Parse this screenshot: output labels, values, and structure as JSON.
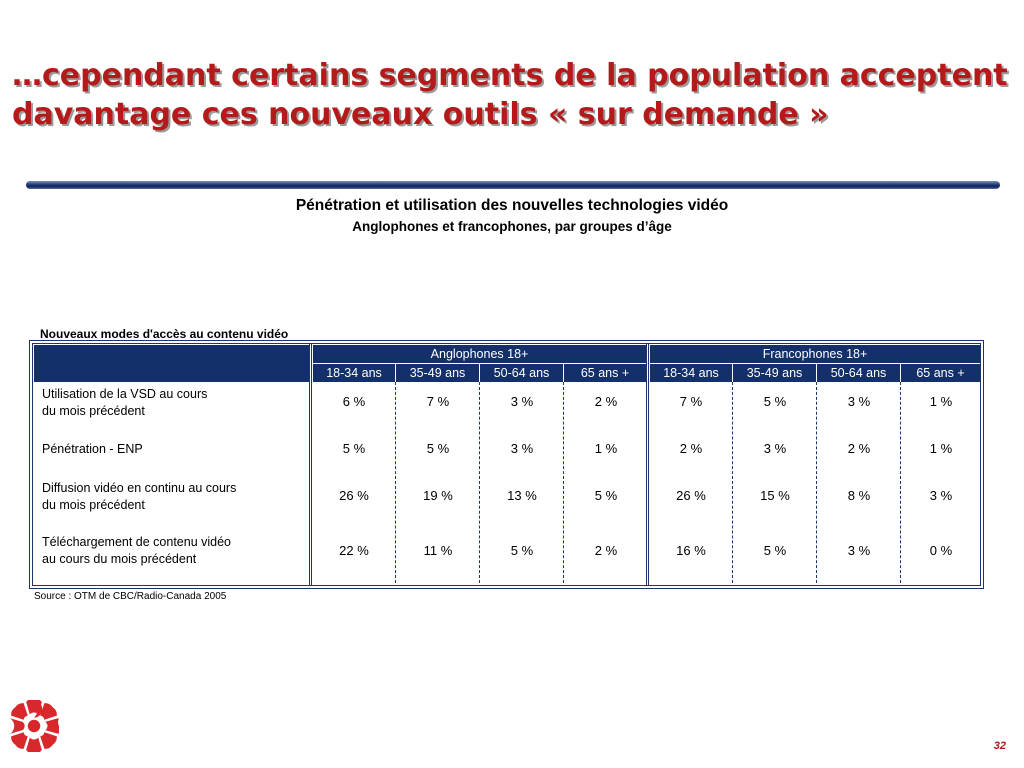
{
  "slide": {
    "title": "…cependant certains segments de la population acceptent davantage ces nouveaux outils « sur demande »",
    "chart_title": "Pénétration et utilisation des nouvelles technologies vidéo",
    "chart_subtitle": "Anglophones et francophones, par groupes d’âge",
    "table_caption": "Nouveaux modes d'accès au contenu vidéo",
    "source": "Source : OTM de CBC/Radio-Canada 2005",
    "page_number": "32",
    "colors": {
      "title": "#b51a1a",
      "header_bg": "#13306b",
      "rule": "#1b356d"
    },
    "logo_icon": "cbc-radio-canada-gem-logo"
  },
  "table": {
    "groups": [
      "Anglophones 18+",
      "Francophones 18+"
    ],
    "ages": [
      "18-34 ans",
      "35-49 ans",
      "50-64 ans",
      "65 ans +",
      "18-34 ans",
      "35-49 ans",
      "50-64 ans",
      "65 ans +"
    ],
    "rows": [
      {
        "label_lines": [
          "Utilisation de la VSD au cours",
          "du mois précédent"
        ],
        "values": [
          "6 %",
          "7 %",
          "3 %",
          "2 %",
          "7 %",
          "5 %",
          "3 %",
          "1 %"
        ]
      },
      {
        "label_lines": [
          "Pénétration - ENP"
        ],
        "values": [
          "5 %",
          "5 %",
          "3 %",
          "1 %",
          "2 %",
          "3 %",
          "2 %",
          "1 %"
        ]
      },
      {
        "label_lines": [
          "Diffusion vidéo en continu au cours",
          "du mois précédent"
        ],
        "values": [
          "26 %",
          "19 %",
          "13 %",
          "5 %",
          "26 %",
          "15 %",
          "8 %",
          "3 %"
        ]
      },
      {
        "label_lines": [
          "Téléchargement de contenu vidéo",
          "au cours du mois précédent"
        ],
        "values": [
          "22 %",
          "11 %",
          "5 %",
          "2 %",
          "16 %",
          "5 %",
          "3 %",
          "0 %"
        ]
      }
    ]
  }
}
